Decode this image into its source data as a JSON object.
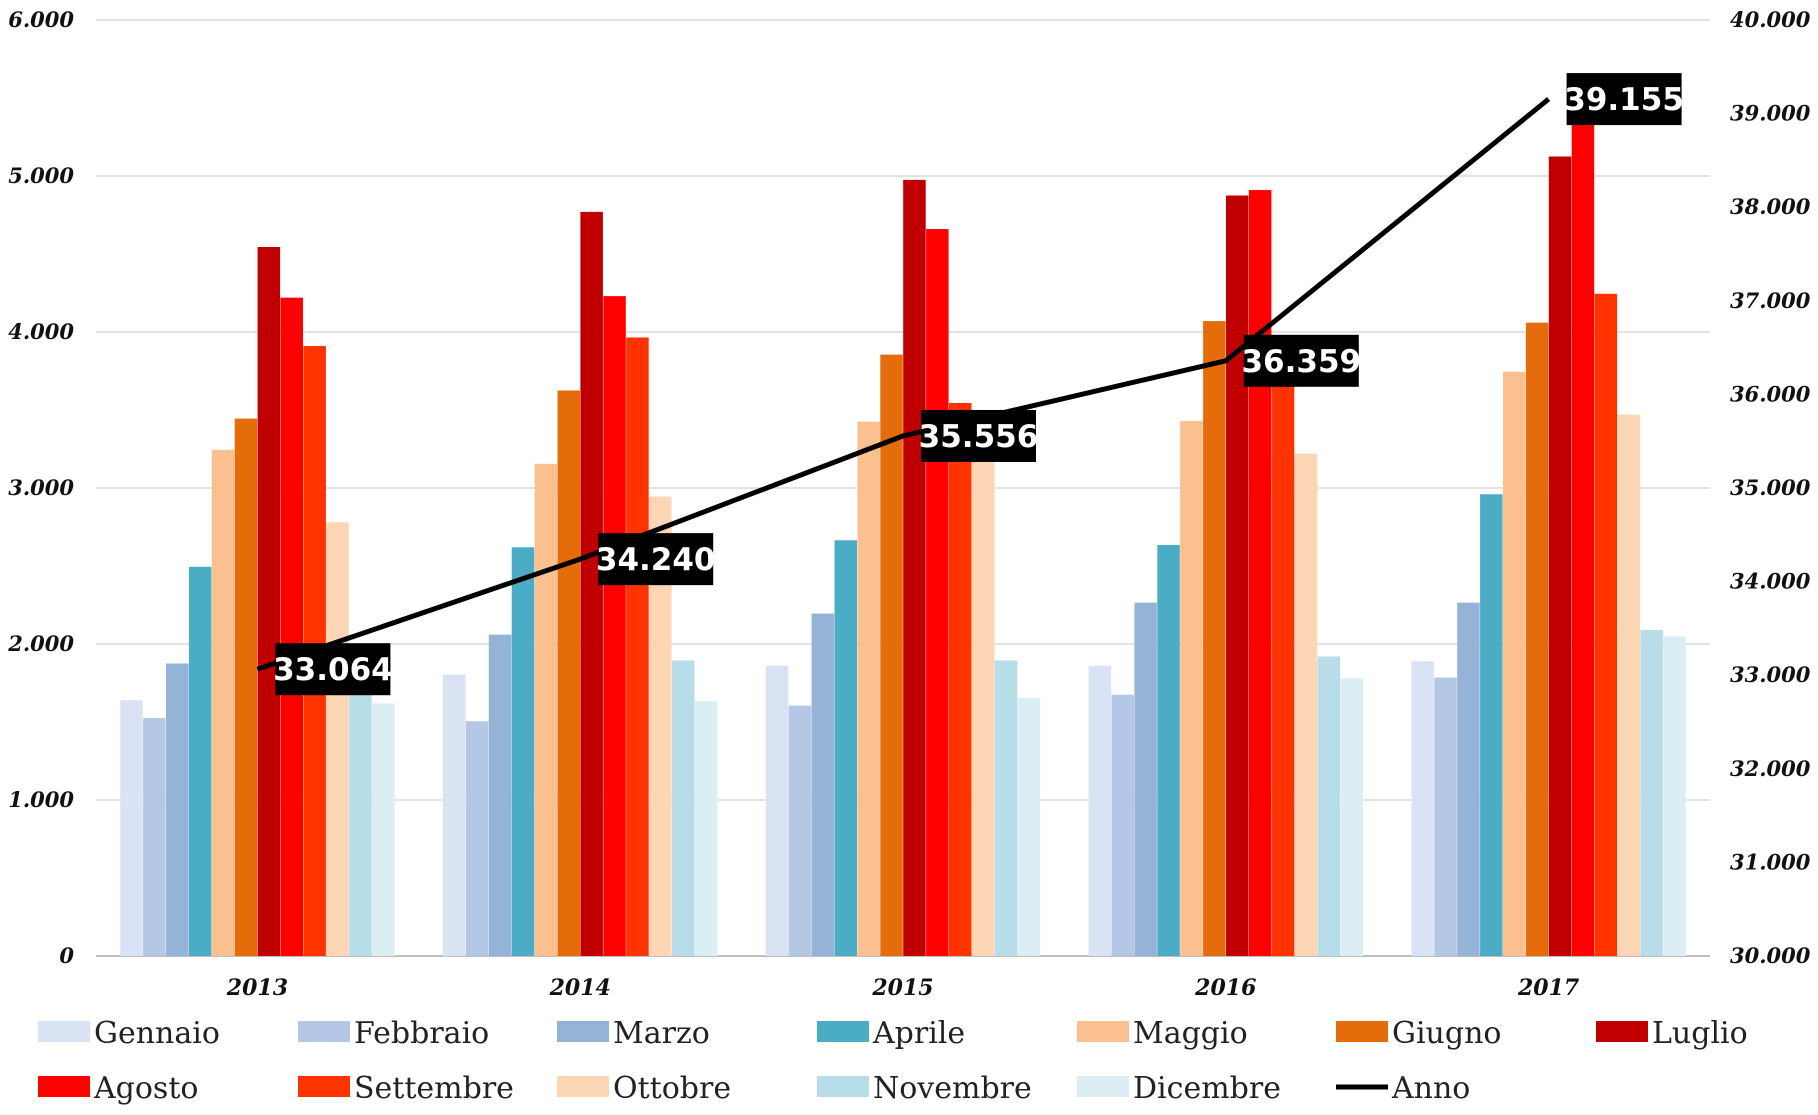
{
  "chart_data": {
    "type": "bar",
    "categories": [
      "2013",
      "2014",
      "2015",
      "2016",
      "2017"
    ],
    "series": [
      {
        "name": "Gennaio",
        "color": "#dae3f3",
        "values": [
          1640,
          1805,
          1860,
          1860,
          1890
        ]
      },
      {
        "name": "Febbraio",
        "color": "#b4c7e7",
        "values": [
          1525,
          1505,
          1605,
          1675,
          1785
        ]
      },
      {
        "name": "Marzo",
        "color": "#95b3d7",
        "values": [
          1875,
          2060,
          2195,
          2265,
          2265
        ]
      },
      {
        "name": "Aprile",
        "color": "#4bacc6",
        "values": [
          2495,
          2620,
          2665,
          2635,
          2960
        ]
      },
      {
        "name": "Maggio",
        "color": "#fac090",
        "values": [
          3245,
          3155,
          3425,
          3430,
          3745
        ]
      },
      {
        "name": "Giugno",
        "color": "#e46c0a",
        "values": [
          3445,
          3625,
          3855,
          4070,
          4060
        ]
      },
      {
        "name": "Luglio",
        "color": "#c00000",
        "values": [
          4545,
          4770,
          4975,
          4875,
          5125
        ]
      },
      {
        "name": "Agosto",
        "color": "#ff0000",
        "values": [
          4220,
          4230,
          4660,
          4910,
          5530
        ]
      },
      {
        "name": "Settembre",
        "color": "#ff3300",
        "values": [
          3910,
          3965,
          3545,
          3720,
          4245
        ]
      },
      {
        "name": "Ottobre",
        "color": "#fcd5b5",
        "values": [
          2780,
          2945,
          3215,
          3220,
          3470
        ]
      },
      {
        "name": "Novembre",
        "color": "#b7dde8",
        "values": [
          1725,
          1895,
          1895,
          1920,
          2090
        ]
      },
      {
        "name": "Dicembre",
        "color": "#dbeef4",
        "values": [
          1620,
          1635,
          1655,
          1780,
          2050
        ]
      }
    ],
    "line_series": {
      "name": "Anno",
      "color": "#000000",
      "values": [
        33064,
        34240,
        35556,
        36359,
        39155
      ]
    },
    "data_labels": [
      "33.064",
      "34.240",
      "35.556",
      "36.359",
      "39.155"
    ],
    "y_left": {
      "ylim": [
        0,
        6000
      ],
      "ticks": [
        "0",
        "1.000",
        "2.000",
        "3.000",
        "4.000",
        "5.000",
        "6.000"
      ]
    },
    "y_right": {
      "ylim": [
        30000,
        40000
      ],
      "ticks": [
        "30.000",
        "31.000",
        "32.000",
        "33.000",
        "34.000",
        "35.000",
        "36.000",
        "37.000",
        "38.000",
        "39.000",
        "40.000"
      ]
    },
    "grid": true,
    "legend_position": "bottom"
  }
}
